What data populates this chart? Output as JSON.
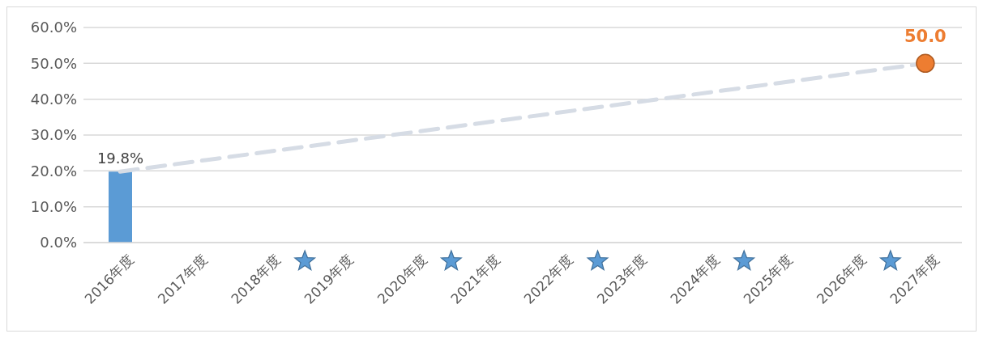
{
  "chart_data": {
    "type": "bar",
    "categories": [
      "2016年度",
      "2017年度",
      "2018年度",
      "2019年度",
      "2020年度",
      "2021年度",
      "2022年度",
      "2023年度",
      "2024年度",
      "2025年度",
      "2026年度",
      "2027年度"
    ],
    "series": [
      {
        "color": "#5b9bd5",
        "values": [
          19.8,
          null,
          null,
          null,
          null,
          null,
          null,
          null,
          null,
          null,
          null,
          null
        ],
        "value_labels": [
          "19.8%",
          null,
          null,
          null,
          null,
          null,
          null,
          null,
          null,
          null,
          null,
          null
        ]
      },
      {
        "type": "line",
        "color": "#d6dce5",
        "line_style": "dashed",
        "marker": "none",
        "values": [
          19.8,
          null,
          null,
          null,
          null,
          null,
          null,
          null,
          null,
          null,
          null,
          50.0
        ]
      },
      {
        "type": "scatter",
        "color": "#ed7d31",
        "marker": "circle",
        "values": [
          null,
          null,
          null,
          null,
          null,
          null,
          null,
          null,
          null,
          null,
          null,
          50.0
        ],
        "value_labels": [
          null,
          null,
          null,
          null,
          null,
          null,
          null,
          null,
          null,
          null,
          null,
          "50.0"
        ]
      }
    ],
    "ylim": [
      0,
      60
    ],
    "yticks": [
      {
        "value": 0,
        "label": "0.0%"
      },
      {
        "value": 10,
        "label": "10.0%"
      },
      {
        "value": 20,
        "label": "20.0%"
      },
      {
        "value": 30,
        "label": "30.0%"
      },
      {
        "value": 40,
        "label": "40.0%"
      },
      {
        "value": 50,
        "label": "50.0%"
      },
      {
        "value": 60,
        "label": "60.0%"
      }
    ],
    "grid": "y"
  }
}
